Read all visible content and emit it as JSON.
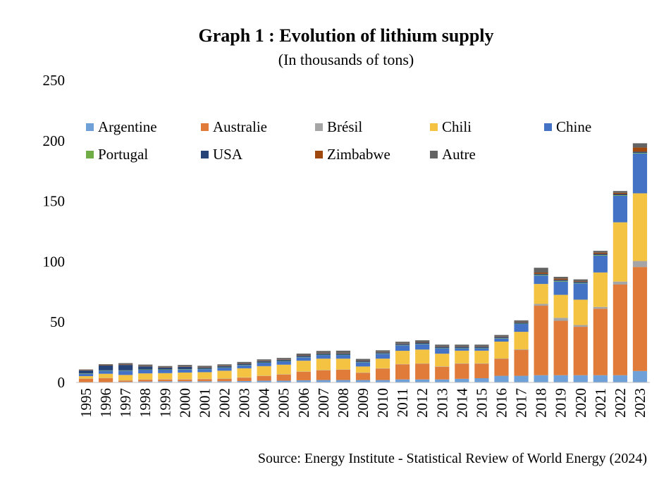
{
  "chart_data": {
    "type": "bar",
    "stacked": true,
    "title": "Graph 1 : Evolution of lithium supply",
    "subtitle": "(In thousands of tons)",
    "source": "Source: Energy Institute - Statistical Review of World Energy (2024)",
    "xlabel": "",
    "ylabel": "",
    "ylim": [
      0,
      250
    ],
    "yticks": [
      0,
      50,
      100,
      150,
      200,
      250
    ],
    "grid": false,
    "legend_position": "top-inside",
    "categories": [
      "1995",
      "1996",
      "1997",
      "1998",
      "1999",
      "2000",
      "2001",
      "2002",
      "2003",
      "2004",
      "2005",
      "2006",
      "2007",
      "2008",
      "2009",
      "2010",
      "2011",
      "2012",
      "2013",
      "2014",
      "2015",
      "2016",
      "2017",
      "2018",
      "2019",
      "2020",
      "2021",
      "2022",
      "2023"
    ],
    "series": [
      {
        "name": "Argentine",
        "color": "#6fa0d8",
        "values": [
          0.0,
          0.0,
          0.5,
          0.8,
          1.0,
          1.0,
          1.0,
          1.0,
          1.2,
          1.5,
          1.5,
          1.8,
          2.0,
          2.0,
          2.0,
          2.0,
          2.5,
          2.5,
          2.5,
          3.0,
          3.5,
          5.5,
          5.5,
          6.0,
          6.0,
          6.0,
          6.0,
          6.0,
          9.5
        ]
      },
      {
        "name": "Australie",
        "color": "#e07b39",
        "values": [
          3.0,
          3.5,
          1.0,
          1.5,
          1.5,
          1.5,
          1.8,
          2.0,
          2.8,
          3.8,
          5.0,
          7.0,
          8.0,
          8.5,
          6.0,
          9.5,
          12.5,
          13.0,
          10.5,
          12.5,
          12.0,
          14.0,
          21.5,
          57.5,
          45.0,
          40.0,
          55.0,
          75.0,
          86.0
        ]
      },
      {
        "name": "Brésil",
        "color": "#a5a5a5",
        "values": [
          0.2,
          0.2,
          0.2,
          0.2,
          0.2,
          0.2,
          0.2,
          0.2,
          0.2,
          0.2,
          0.2,
          0.2,
          0.2,
          0.2,
          0.2,
          0.2,
          0.2,
          0.2,
          0.3,
          0.3,
          0.3,
          0.3,
          0.4,
          1.5,
          2.5,
          1.5,
          1.5,
          2.5,
          5.0
        ]
      },
      {
        "name": "Chili",
        "color": "#f5c342",
        "values": [
          2.0,
          3.5,
          4.5,
          5.0,
          5.0,
          5.5,
          5.5,
          6.5,
          7.5,
          8.0,
          8.0,
          9.0,
          9.5,
          9.0,
          5.0,
          8.0,
          11.0,
          11.5,
          10.5,
          10.5,
          10.5,
          14.0,
          14.5,
          16.5,
          19.0,
          21.0,
          28.5,
          49.0,
          56.0
        ]
      },
      {
        "name": "Chine",
        "color": "#4472c4",
        "values": [
          2.0,
          2.5,
          3.5,
          3.0,
          2.8,
          2.5,
          2.5,
          2.5,
          2.5,
          2.8,
          2.8,
          2.8,
          3.0,
          3.0,
          3.5,
          4.0,
          4.5,
          4.5,
          4.5,
          2.0,
          2.0,
          2.5,
          6.5,
          7.0,
          11.0,
          13.5,
          14.0,
          22.0,
          33.0
        ]
      },
      {
        "name": "Portugal",
        "color": "#70ad47",
        "values": [
          0.3,
          0.3,
          0.3,
          0.3,
          0.3,
          0.3,
          0.3,
          0.3,
          0.3,
          0.3,
          0.3,
          0.3,
          0.3,
          0.3,
          0.3,
          0.3,
          0.3,
          0.3,
          0.3,
          0.3,
          0.3,
          0.3,
          0.3,
          0.5,
          0.5,
          0.4,
          0.5,
          0.5,
          0.5
        ]
      },
      {
        "name": "USA",
        "color": "#264478",
        "values": [
          2.5,
          4.0,
          4.5,
          2.5,
          1.5,
          2.0,
          1.0,
          1.0,
          1.0,
          1.0,
          1.0,
          1.0,
          1.0,
          1.0,
          0.8,
          0.9,
          0.9,
          0.9,
          0.9,
          0.9,
          0.9,
          0.9,
          0.9,
          0.9,
          0.9,
          0.9,
          0.9,
          0.9,
          0.9
        ]
      },
      {
        "name": "Zimbabwe",
        "color": "#9e480e",
        "values": [
          0.3,
          0.3,
          0.3,
          0.3,
          0.3,
          0.3,
          0.3,
          0.3,
          0.3,
          0.3,
          0.3,
          0.3,
          0.3,
          0.3,
          0.3,
          0.3,
          0.3,
          0.3,
          0.3,
          0.3,
          0.3,
          0.3,
          0.3,
          1.0,
          1.0,
          0.5,
          1.0,
          1.0,
          3.5
        ]
      },
      {
        "name": "Autre",
        "color": "#636363",
        "values": [
          0.5,
          0.8,
          1.2,
          1.2,
          1.0,
          1.2,
          1.2,
          1.2,
          1.2,
          1.2,
          1.2,
          1.5,
          1.8,
          2.0,
          1.4,
          1.4,
          1.5,
          1.7,
          1.5,
          1.5,
          1.5,
          1.5,
          1.5,
          4.0,
          1.5,
          1.5,
          1.5,
          1.5,
          3.5
        ]
      }
    ]
  }
}
